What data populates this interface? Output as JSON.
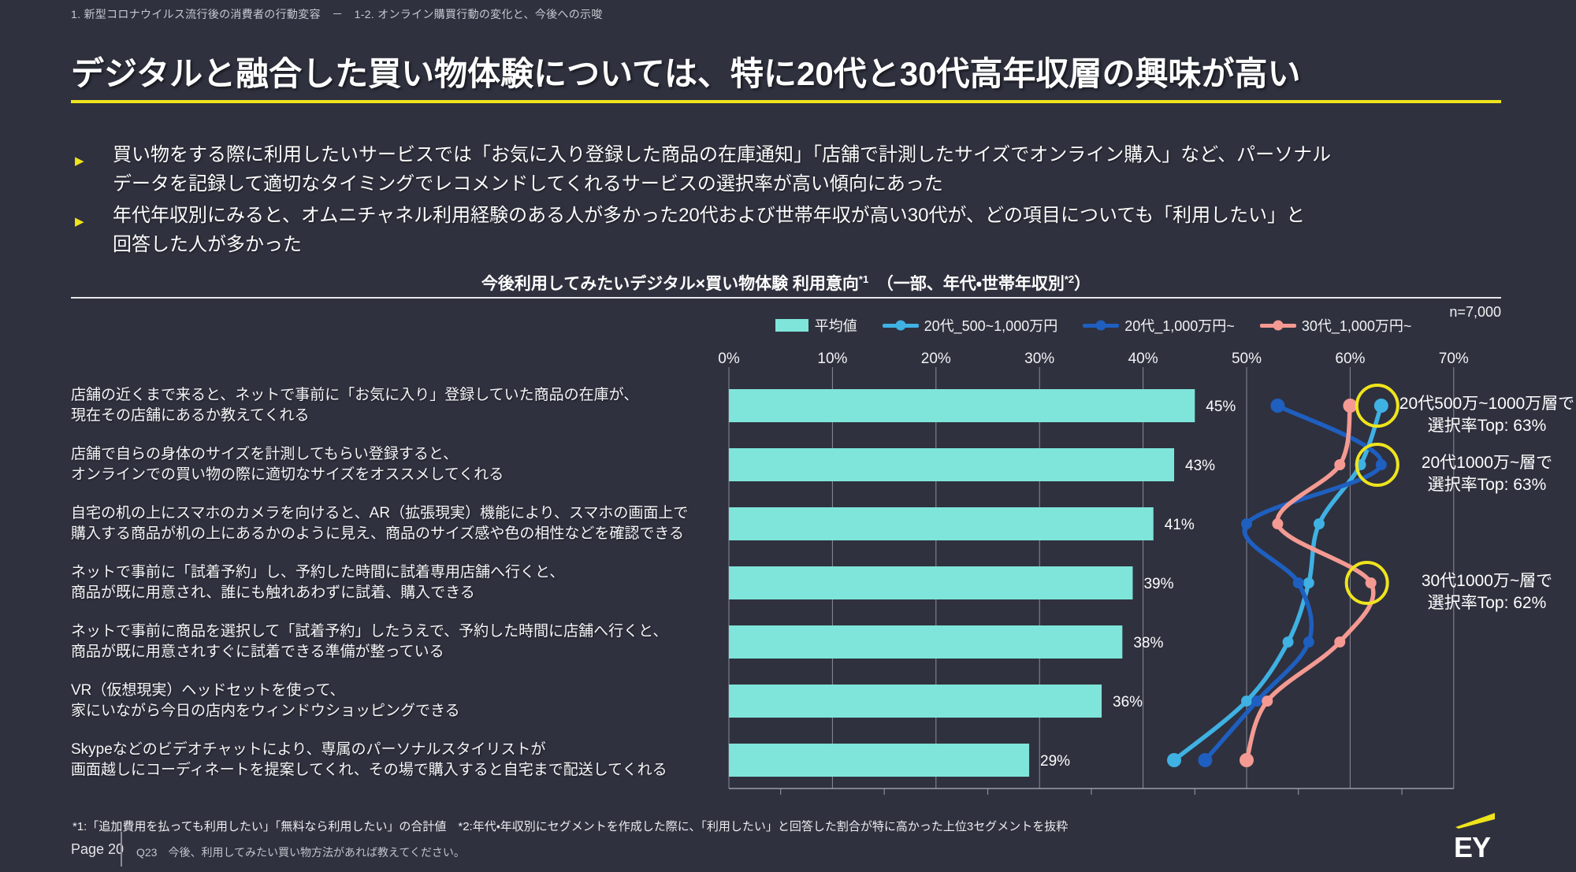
{
  "page": {
    "breadcrumb": "1. 新型コロナウイルス流行後の消費者の行動変容　－　1-2. オンライン購買行動の変化と、今後への示唆",
    "title": "デジタルと融合した買い物体験については、特に20代と30代高年収層の興味が高い",
    "bullets": [
      "買い物をする際に利用したいサービスでは「お気に入り登録した商品の在庫通知」「店舗で計測したサイズでオンライン購入」など、パーソナル\nデータを記録して適切なタイミングでレコメンドしてくれるサービスの選択率が高い傾向にあった",
      "年代年収別にみると、オムニチャネル利用経験のある人が多かった20代および世帯年収が高い30代が、どの項目についても「利用したい」と\n回答した人が多かった"
    ],
    "footnote": "*1:「追加費用を払っても利用したい」「無料なら利用したい」の合計値　*2:年代・年収別にセグメントを作成した際に、「利用したい」と回答した割合が特に高かった上位3セグメントを抜粋",
    "page_label": "Page 20",
    "question": "Q23　今後、利用してみたい買い物方法があれば教えてください。",
    "logo": "EY"
  },
  "colors": {
    "background": "#2f313e",
    "accent_yellow": "#efe41c",
    "bar": "#7fe5da",
    "line_20s_500_1000": "#3fb1e3",
    "line_20s_1000": "#1e5fbf",
    "line_30s_1000": "#f49a92",
    "grid": "#9a9da8",
    "highlight_circle": "#efe41d"
  },
  "chart_data": {
    "type": "bar+line",
    "title_parts": {
      "main": "今後利用してみたいデジタル×買い物体験 利用意向",
      "sup1": "*1",
      "mid": "　（一部、年代・世帯年収別",
      "sup2": "*2",
      "end": "）"
    },
    "sample": "n=7,000",
    "x_axis": {
      "min": 0,
      "max": 70,
      "step": 10,
      "ticks": [
        "0%",
        "10%",
        "20%",
        "30%",
        "40%",
        "50%",
        "60%",
        "70%"
      ]
    },
    "categories": [
      "店舗の近くまで来ると、ネットで事前に「お気に入り」登録していた商品の在庫が、\n現在その店舗にあるか教えてくれる",
      "店舗で自らの身体のサイズを計測してもらい登録すると、\nオンラインでの買い物の際に適切なサイズをオススメしてくれる",
      "自宅の机の上にスマホのカメラを向けると、AR（拡張現実）機能により、スマホの画面上で\n購入する商品が机の上にあるかのように見え、商品のサイズ感や色の相性などを確認できる",
      "ネットで事前に「試着予約」し、予約した時間に試着専用店舗へ行くと、\n商品が既に用意され、誰にも触れあわずに試着、購入できる",
      "ネットで事前に商品を選択して「試着予約」したうえで、予約した時間に店舗へ行くと、\n商品が既に用意されすぐに試着できる準備が整っている",
      "VR（仮想現実）ヘッドセットを使って、\n家にいながら今日の店内をウィンドウショッピングできる",
      "Skypeなどのビデオチャットにより、専属のパーソナルスタイリストが\n画面越しにコーディネートを提案してくれ、その場で購入すると自宅まで配送してくれる"
    ],
    "bar_series": {
      "name": "平均値",
      "values": [
        45,
        43,
        41,
        39,
        38,
        36,
        29
      ]
    },
    "line_series": [
      {
        "name": "20代_500~1,000万円",
        "color_key": "line_20s_500_1000",
        "values": [
          63,
          61,
          57,
          56,
          54,
          50,
          43
        ]
      },
      {
        "name": "20代_1,000万円~",
        "color_key": "line_20s_1000",
        "values": [
          53,
          63,
          50,
          55,
          56,
          51,
          46
        ]
      },
      {
        "name": "30代_1,000万円~",
        "color_key": "line_30s_1000",
        "values": [
          60,
          59,
          53,
          62,
          59,
          52,
          50
        ]
      }
    ],
    "annotations": [
      {
        "text": "20代500万~1000万層で\n選択率Top: 63%",
        "series": 0,
        "row": 0,
        "value": 63
      },
      {
        "text": "20代1000万~層で\n選択率Top: 63%",
        "series": 1,
        "row": 1,
        "value": 63
      },
      {
        "text": "30代1000万~層で\n選択率Top: 62%",
        "series": 2,
        "row": 3,
        "value": 62
      }
    ]
  }
}
